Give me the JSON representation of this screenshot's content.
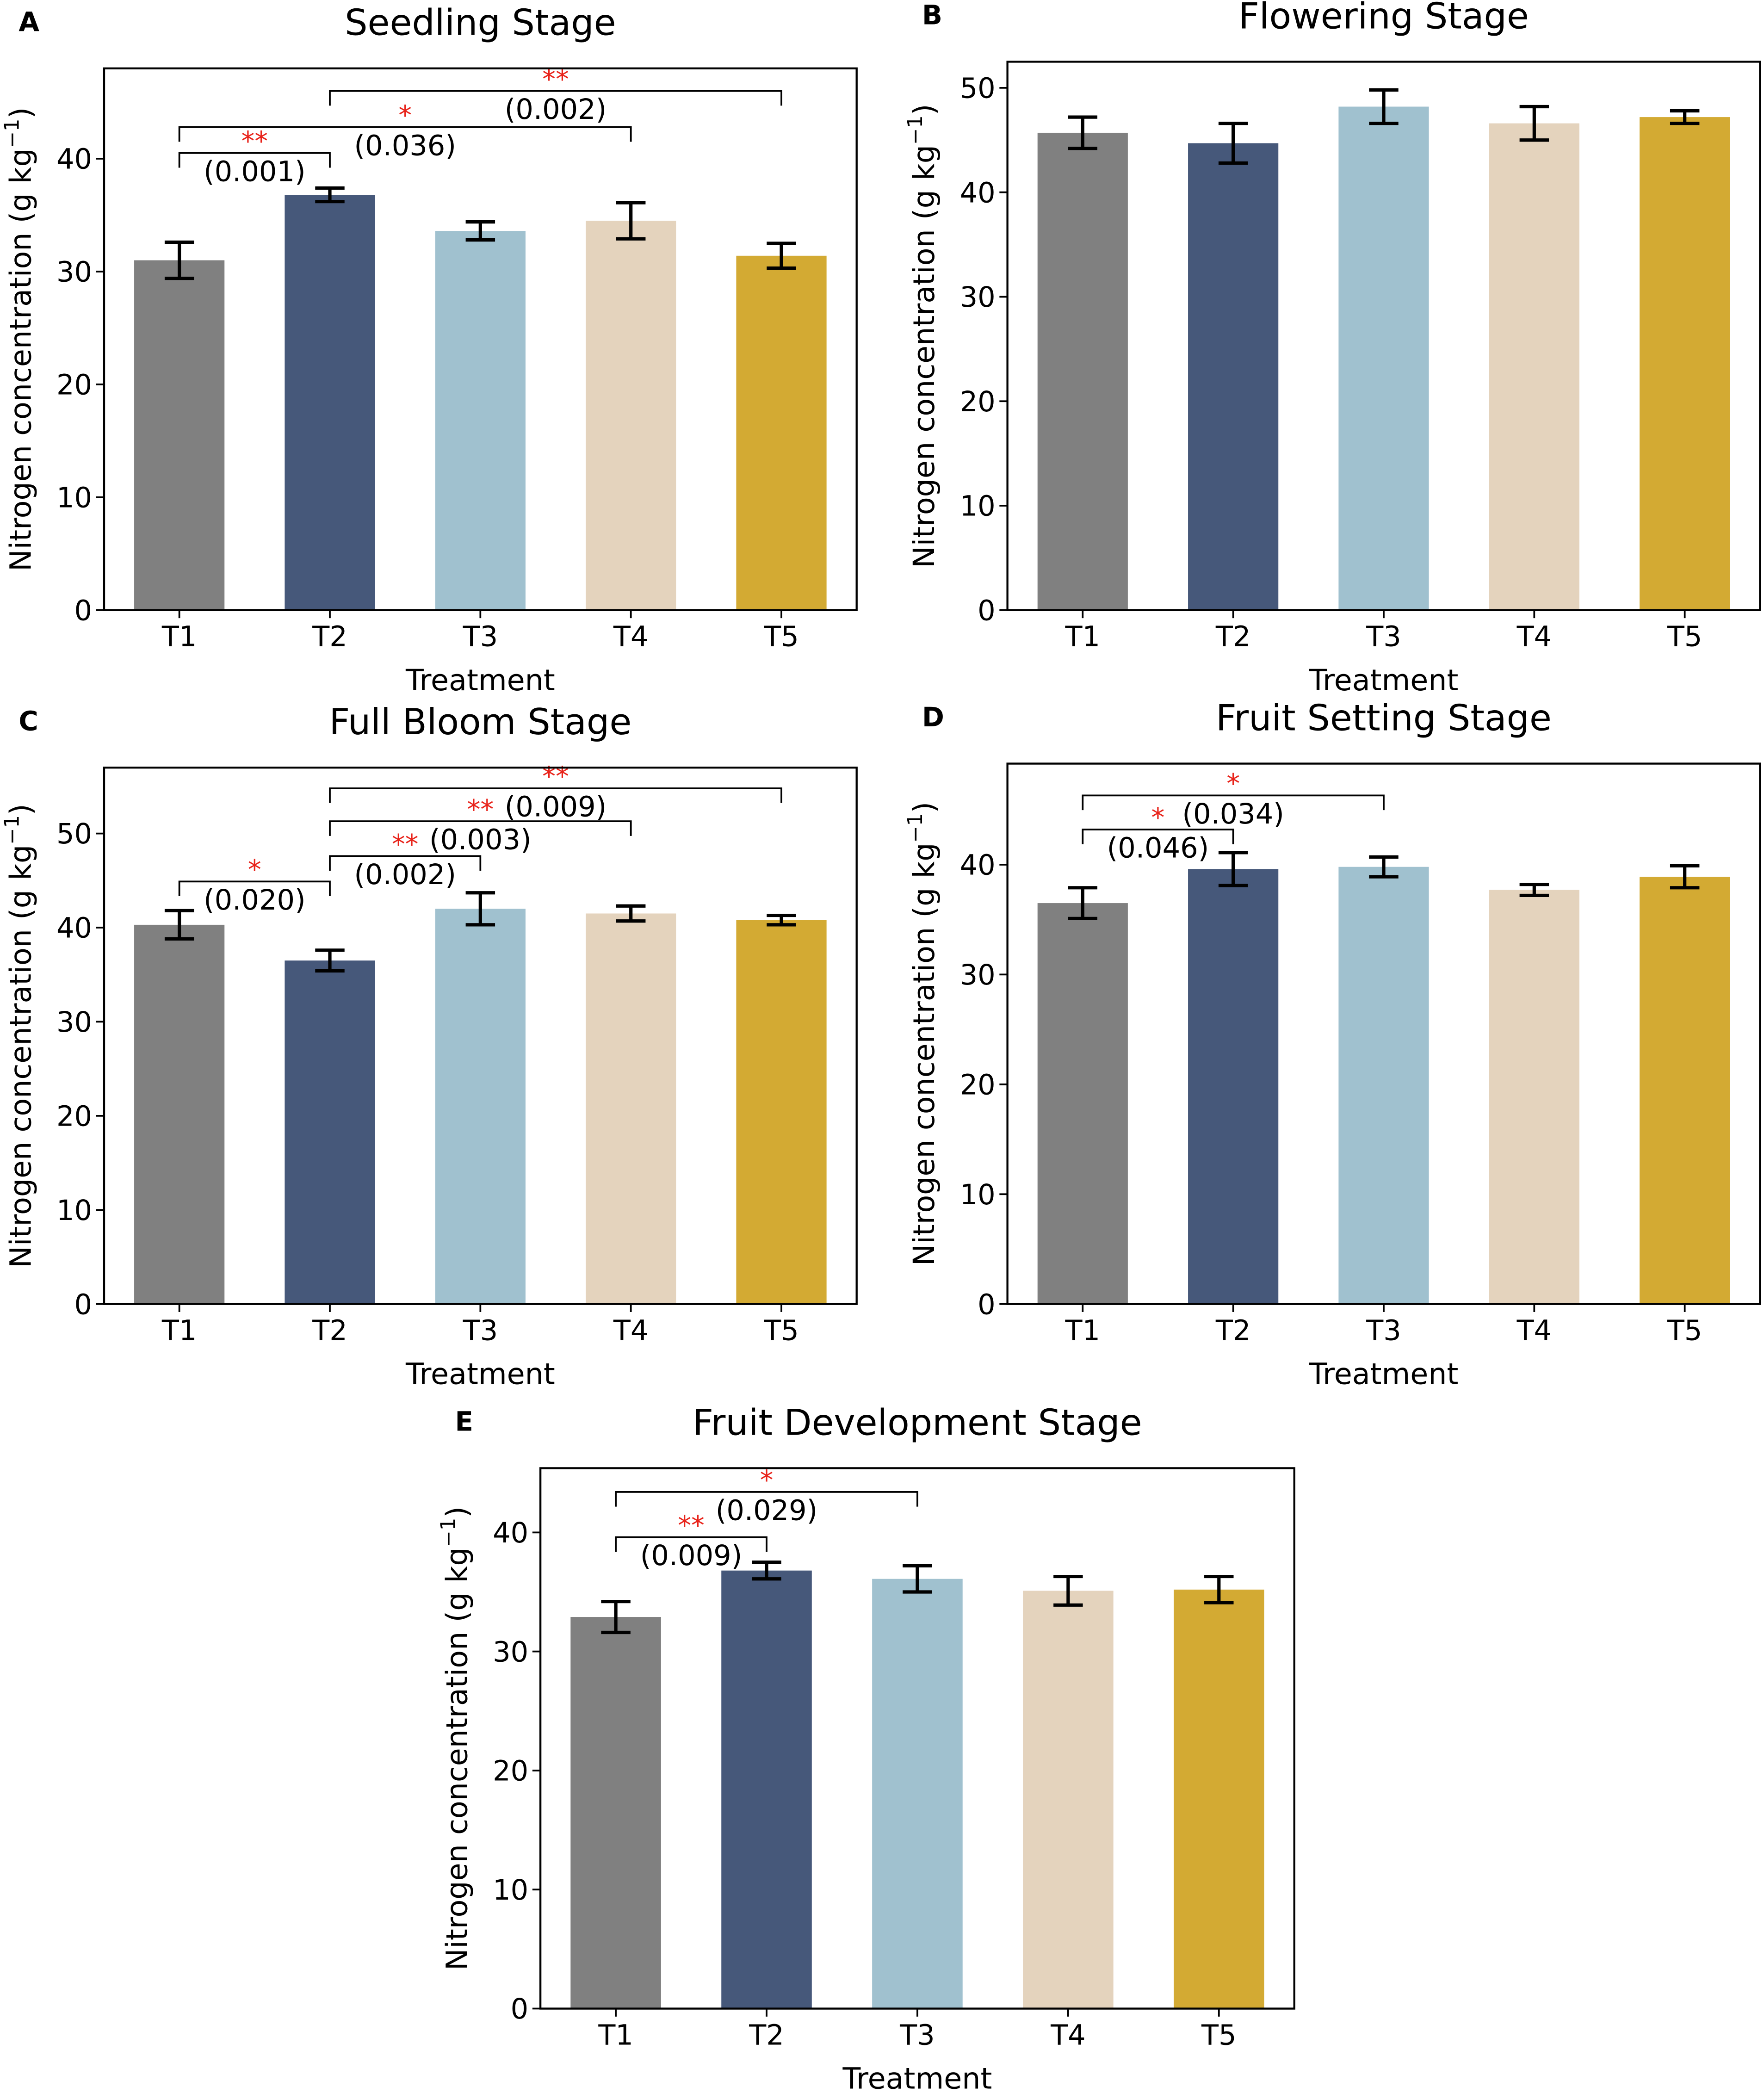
{
  "chart_data": [
    {
      "type": "bar",
      "panel": "A",
      "title": "Seedling Stage",
      "xlabel": "Treatment",
      "ylabel": "Nitrogen concentration (g kg",
      "ylabel_sup": "−1",
      "ylabel_end": ")",
      "categories": [
        "T1",
        "T2",
        "T3",
        "T4",
        "T5"
      ],
      "values": [
        31.0,
        36.8,
        33.6,
        34.5,
        31.4
      ],
      "errors": [
        1.6,
        0.6,
        0.8,
        1.6,
        1.1
      ],
      "ylim": [
        0,
        48
      ],
      "yticks": [
        0,
        10,
        20,
        30,
        40
      ],
      "significance": [
        {
          "from": 0,
          "to": 1,
          "y": 40.5,
          "stars": "**",
          "p": "(0.001)"
        },
        {
          "from": 0,
          "to": 3,
          "y": 42.8,
          "stars": "*",
          "p": "(0.036)"
        },
        {
          "from": 1,
          "to": 4,
          "y": 46.0,
          "stars": "**",
          "p": "(0.002)"
        }
      ]
    },
    {
      "type": "bar",
      "panel": "B",
      "title": "Flowering Stage",
      "xlabel": "Treatment",
      "ylabel": "Nitrogen concentration (g kg",
      "ylabel_sup": "−1",
      "ylabel_end": ")",
      "categories": [
        "T1",
        "T2",
        "T3",
        "T4",
        "T5"
      ],
      "values": [
        45.7,
        44.7,
        48.2,
        46.6,
        47.2
      ],
      "errors": [
        1.5,
        1.9,
        1.6,
        1.6,
        0.6
      ],
      "ylim": [
        0,
        52.5
      ],
      "yticks": [
        0,
        10,
        20,
        30,
        40,
        50
      ],
      "significance": []
    },
    {
      "type": "bar",
      "panel": "C",
      "title": "Full Bloom Stage",
      "xlabel": "Treatment",
      "ylabel": "Nitrogen concentration (g kg",
      "ylabel_sup": "−1",
      "ylabel_end": ")",
      "categories": [
        "T1",
        "T2",
        "T3",
        "T4",
        "T5"
      ],
      "values": [
        40.3,
        36.5,
        42.0,
        41.5,
        40.8
      ],
      "errors": [
        1.5,
        1.1,
        1.7,
        0.8,
        0.5
      ],
      "ylim": [
        0,
        57
      ],
      "yticks": [
        0,
        10,
        20,
        30,
        40,
        50
      ],
      "significance": [
        {
          "from": 0,
          "to": 1,
          "y": 44.9,
          "stars": "*",
          "p": "(0.020)"
        },
        {
          "from": 1,
          "to": 2,
          "y": 47.6,
          "stars": "**",
          "p": "(0.002)"
        },
        {
          "from": 1,
          "to": 3,
          "y": 51.3,
          "stars": "**",
          "p": "(0.003)"
        },
        {
          "from": 1,
          "to": 4,
          "y": 54.8,
          "stars": "**",
          "p": "(0.009)"
        }
      ]
    },
    {
      "type": "bar",
      "panel": "D",
      "title": "Fruit Setting Stage",
      "xlabel": "Treatment",
      "ylabel": "Nitrogen concentration (g kg",
      "ylabel_sup": "−1",
      "ylabel_end": ")",
      "categories": [
        "T1",
        "T2",
        "T3",
        "T4",
        "T5"
      ],
      "values": [
        36.5,
        39.6,
        39.8,
        37.7,
        38.9
      ],
      "errors": [
        1.4,
        1.5,
        0.9,
        0.5,
        1.0
      ],
      "ylim": [
        0,
        49.2
      ],
      "yticks": [
        0,
        10,
        20,
        30,
        40
      ],
      "significance": [
        {
          "from": 0,
          "to": 1,
          "y": 43.2,
          "stars": "*",
          "p": "(0.046)"
        },
        {
          "from": 0,
          "to": 2,
          "y": 46.3,
          "stars": "*",
          "p": "(0.034)"
        }
      ]
    },
    {
      "type": "bar",
      "panel": "E",
      "title": "Fruit Development Stage",
      "xlabel": "Treatment",
      "ylabel": "Nitrogen concentration (g kg",
      "ylabel_sup": "−1",
      "ylabel_end": ")",
      "categories": [
        "T1",
        "T2",
        "T3",
        "T4",
        "T5"
      ],
      "values": [
        32.9,
        36.8,
        36.1,
        35.1,
        35.2
      ],
      "errors": [
        1.3,
        0.7,
        1.1,
        1.2,
        1.1
      ],
      "ylim": [
        0,
        45.4
      ],
      "yticks": [
        0,
        10,
        20,
        30,
        40
      ],
      "significance": [
        {
          "from": 0,
          "to": 1,
          "y": 39.6,
          "stars": "**",
          "p": "(0.009)"
        },
        {
          "from": 0,
          "to": 2,
          "y": 43.4,
          "stars": "*",
          "p": "(0.029)"
        }
      ]
    }
  ],
  "colors": [
    "#808080",
    "#46587a",
    "#a0c1cf",
    "#e4d3bd",
    "#d3aa33"
  ],
  "star_color": "#e8231a"
}
